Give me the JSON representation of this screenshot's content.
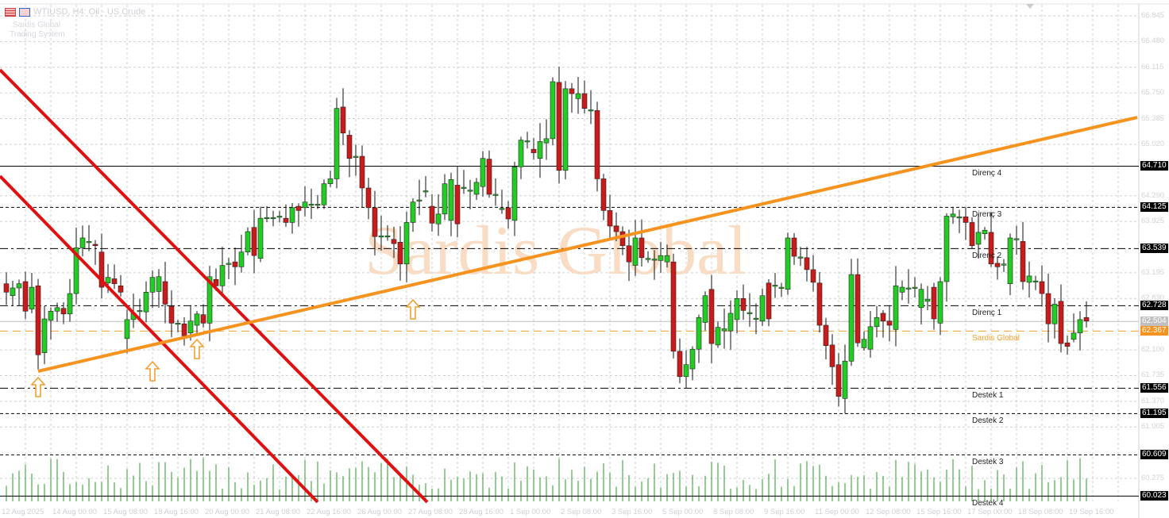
{
  "header": {
    "symbol_title": "WTIUSD, H4: Oil - US Crude",
    "subtitle_line1": "Sardis Global",
    "subtitle_line2": "Trading System",
    "icons": [
      "table-icon",
      "chart-icon"
    ]
  },
  "watermark": "Sardis Global",
  "colors": {
    "up": "#22cc22",
    "down": "#cc1a1a",
    "trend_support": "#f5931e",
    "trend_down": "#e01010",
    "sardis": "#f0a030",
    "grid": "#c8c8c8"
  },
  "price_axis": {
    "min": 60.023,
    "max": 66.845,
    "labels": [
      "66.845",
      "66.480",
      "66.115",
      "65.750",
      "65.385",
      "65.020",
      "64.290",
      "63.925",
      "63.195",
      "62.830",
      "62.100",
      "61.735",
      "61.370",
      "61.005",
      "60.275"
    ]
  },
  "levels": [
    {
      "name": "Direnç 4",
      "price": "64.710",
      "style": "solid"
    },
    {
      "name": "Direnç 3",
      "price": "64.125",
      "style": "dashed"
    },
    {
      "name": "Direnç 2",
      "price": "63.539",
      "style": "dashdot"
    },
    {
      "name": "Direnç 1",
      "price": "62.728",
      "style": "dashdot"
    },
    {
      "name": "Sardis Global",
      "price": "62.367",
      "style": "sardis"
    },
    {
      "name": "",
      "price": "62.504",
      "style": "current"
    },
    {
      "name": "Destek 1",
      "price": "61.556",
      "style": "dashdot"
    },
    {
      "name": "Destek 2",
      "price": "61.195",
      "style": "dashed"
    },
    {
      "name": "Destek 3",
      "price": "60.609",
      "style": "dashed"
    },
    {
      "name": "Destek 4",
      "price": "60.023",
      "style": "solid"
    }
  ],
  "time_axis": [
    "12 Aug 2025",
    "14 Aug 00:00",
    "15 Aug 08:00",
    "18 Aug 16:00",
    "20 Aug 00:00",
    "21 Aug 08:00",
    "22 Aug 16:00",
    "26 Aug 00:00",
    "27 Aug 08:00",
    "28 Aug 16:00",
    "1 Sep 00:00",
    "2 Sep 08:00",
    "3 Sep 16:00",
    "5 Sep 00:00",
    "8 Sep 08:00",
    "9 Sep 16:00",
    "11 Sep 00:00",
    "12 Sep 08:00",
    "15 Sep 16:00",
    "17 Sep 00:00",
    "18 Sep 08:00",
    "19 Sep 16:00"
  ],
  "candles_open_close": [
    [
      63.04,
      62.92
    ],
    [
      62.87,
      62.98
    ],
    [
      62.98,
      63.04
    ],
    [
      63.07,
      62.65
    ],
    [
      62.68,
      62.99
    ],
    [
      63.01,
      62.03
    ],
    [
      62.06,
      62.54
    ],
    [
      62.52,
      62.65
    ],
    [
      62.65,
      62.7
    ],
    [
      62.69,
      62.61
    ],
    [
      62.61,
      62.9
    ],
    [
      62.9,
      63.55
    ],
    [
      63.55,
      63.69
    ],
    [
      63.63,
      63.64
    ],
    [
      63.6,
      63.58
    ],
    [
      63.49,
      62.99
    ],
    [
      63.05,
      63.13
    ],
    [
      63.11,
      63.04
    ],
    [
      63.01,
      62.92
    ],
    [
      62.26,
      62.53
    ],
    [
      62.53,
      62.62
    ],
    [
      62.65,
      62.66
    ],
    [
      62.64,
      62.92
    ],
    [
      62.92,
      63.13
    ],
    [
      62.93,
      63.14
    ],
    [
      63.07,
      62.75
    ],
    [
      62.72,
      62.48
    ],
    [
      62.47,
      62.48
    ],
    [
      62.47,
      62.3
    ],
    [
      62.34,
      62.51
    ],
    [
      62.45,
      62.61
    ],
    [
      62.6,
      62.48
    ],
    [
      62.48,
      63.14
    ],
    [
      63.1,
      63.01
    ],
    [
      63.01,
      63.3
    ],
    [
      63.32,
      63.33
    ],
    [
      63.35,
      63.28
    ],
    [
      63.28,
      63.49
    ],
    [
      63.49,
      63.78
    ],
    [
      63.84,
      63.44
    ],
    [
      63.4,
      63.97
    ],
    [
      63.97,
      63.98
    ],
    [
      63.97,
      63.98
    ],
    [
      63.99,
      64.0
    ],
    [
      63.97,
      63.91
    ],
    [
      63.91,
      64.12
    ],
    [
      64.14,
      64.08
    ],
    [
      64.12,
      64.2
    ],
    [
      64.16,
      64.17
    ],
    [
      64.16,
      64.17
    ],
    [
      64.16,
      64.46
    ],
    [
      64.46,
      64.53
    ],
    [
      64.53,
      65.53
    ],
    [
      65.55,
      65.18
    ],
    [
      65.15,
      64.82
    ],
    [
      64.84,
      64.85
    ],
    [
      64.85,
      64.4
    ],
    [
      64.4,
      64.12
    ],
    [
      64.12,
      63.71
    ],
    [
      63.71,
      63.72
    ],
    [
      63.71,
      63.72
    ],
    [
      63.67,
      63.61
    ],
    [
      63.63,
      63.32
    ],
    [
      63.32,
      63.91
    ],
    [
      63.91,
      64.2
    ],
    [
      64.22,
      64.23
    ],
    [
      64.35,
      64.36
    ],
    [
      64.14,
      63.9
    ],
    [
      63.89,
      64.03
    ],
    [
      64.03,
      64.46
    ],
    [
      63.94,
      64.52
    ],
    [
      64.44,
      63.89
    ],
    [
      64.4,
      64.41
    ],
    [
      64.36,
      64.37
    ],
    [
      64.31,
      64.48
    ],
    [
      64.42,
      64.82
    ],
    [
      64.81,
      64.31
    ],
    [
      64.3,
      64.31
    ],
    [
      64.1,
      64.11
    ],
    [
      64.12,
      63.96
    ],
    [
      63.94,
      64.7
    ],
    [
      64.7,
      65.08
    ],
    [
      65.06,
      65.07
    ],
    [
      64.95,
      64.9
    ],
    [
      64.82,
      65.06
    ],
    [
      65.04,
      65.1
    ],
    [
      65.1,
      65.91
    ],
    [
      65.9,
      64.65
    ],
    [
      64.65,
      65.81
    ],
    [
      65.81,
      65.74
    ],
    [
      65.67,
      65.74
    ],
    [
      65.74,
      65.53
    ],
    [
      65.5,
      65.51
    ],
    [
      65.5,
      64.53
    ],
    [
      64.53,
      64.08
    ],
    [
      64.08,
      63.86
    ],
    [
      63.86,
      63.78
    ],
    [
      63.78,
      63.58
    ],
    [
      63.58,
      63.35
    ],
    [
      63.3,
      63.69
    ],
    [
      63.69,
      63.41
    ],
    [
      63.39,
      63.4
    ],
    [
      63.38,
      63.39
    ],
    [
      63.37,
      63.44
    ],
    [
      63.35,
      63.44
    ],
    [
      63.35,
      62.08
    ],
    [
      62.08,
      61.72
    ],
    [
      61.72,
      61.89
    ],
    [
      61.83,
      62.11
    ],
    [
      62.11,
      62.56
    ],
    [
      62.49,
      62.87
    ],
    [
      62.96,
      62.19
    ],
    [
      62.17,
      62.42
    ],
    [
      62.37,
      62.4
    ],
    [
      62.37,
      62.62
    ],
    [
      62.53,
      62.83
    ],
    [
      62.83,
      62.66
    ],
    [
      62.62,
      62.63
    ],
    [
      62.54,
      62.55
    ],
    [
      62.51,
      62.87
    ],
    [
      63.05,
      62.54
    ],
    [
      63.01,
      63.02
    ],
    [
      62.98,
      62.99
    ],
    [
      62.96,
      63.69
    ],
    [
      63.69,
      63.43
    ],
    [
      63.41,
      63.42
    ],
    [
      63.41,
      63.24
    ],
    [
      63.24,
      63.06
    ],
    [
      63.05,
      62.45
    ],
    [
      62.45,
      62.16
    ],
    [
      62.17,
      61.86
    ],
    [
      61.89,
      61.44
    ],
    [
      61.41,
      61.94
    ],
    [
      61.94,
      63.17
    ],
    [
      63.17,
      62.2
    ],
    [
      62.13,
      62.25
    ],
    [
      62.11,
      62.43
    ],
    [
      62.43,
      62.56
    ],
    [
      62.62,
      62.51
    ],
    [
      62.51,
      62.45
    ],
    [
      62.39,
      63.01
    ],
    [
      62.92,
      62.99
    ],
    [
      62.97,
      62.98
    ],
    [
      62.98,
      62.99
    ],
    [
      62.7,
      62.96
    ],
    [
      62.79,
      62.82
    ],
    [
      62.99,
      62.54
    ],
    [
      62.48,
      63.07
    ],
    [
      63.07,
      64.0
    ],
    [
      63.99,
      64.03
    ],
    [
      63.98,
      63.99
    ],
    [
      63.99,
      63.91
    ],
    [
      63.91,
      63.58
    ],
    [
      63.6,
      63.77
    ],
    [
      63.75,
      63.8
    ],
    [
      63.77,
      63.32
    ],
    [
      63.33,
      63.28
    ],
    [
      63.31,
      63.32
    ],
    [
      63.04,
      63.69
    ],
    [
      63.67,
      63.68
    ],
    [
      63.64,
      63.07
    ],
    [
      63.06,
      63.15
    ],
    [
      63.07,
      63.08
    ],
    [
      63.07,
      62.9
    ],
    [
      62.9,
      62.47
    ],
    [
      62.47,
      62.75
    ],
    [
      62.79,
      62.19
    ],
    [
      62.2,
      62.15
    ],
    [
      62.25,
      62.34
    ],
    [
      62.34,
      62.53
    ],
    [
      62.56,
      62.51
    ]
  ]
}
